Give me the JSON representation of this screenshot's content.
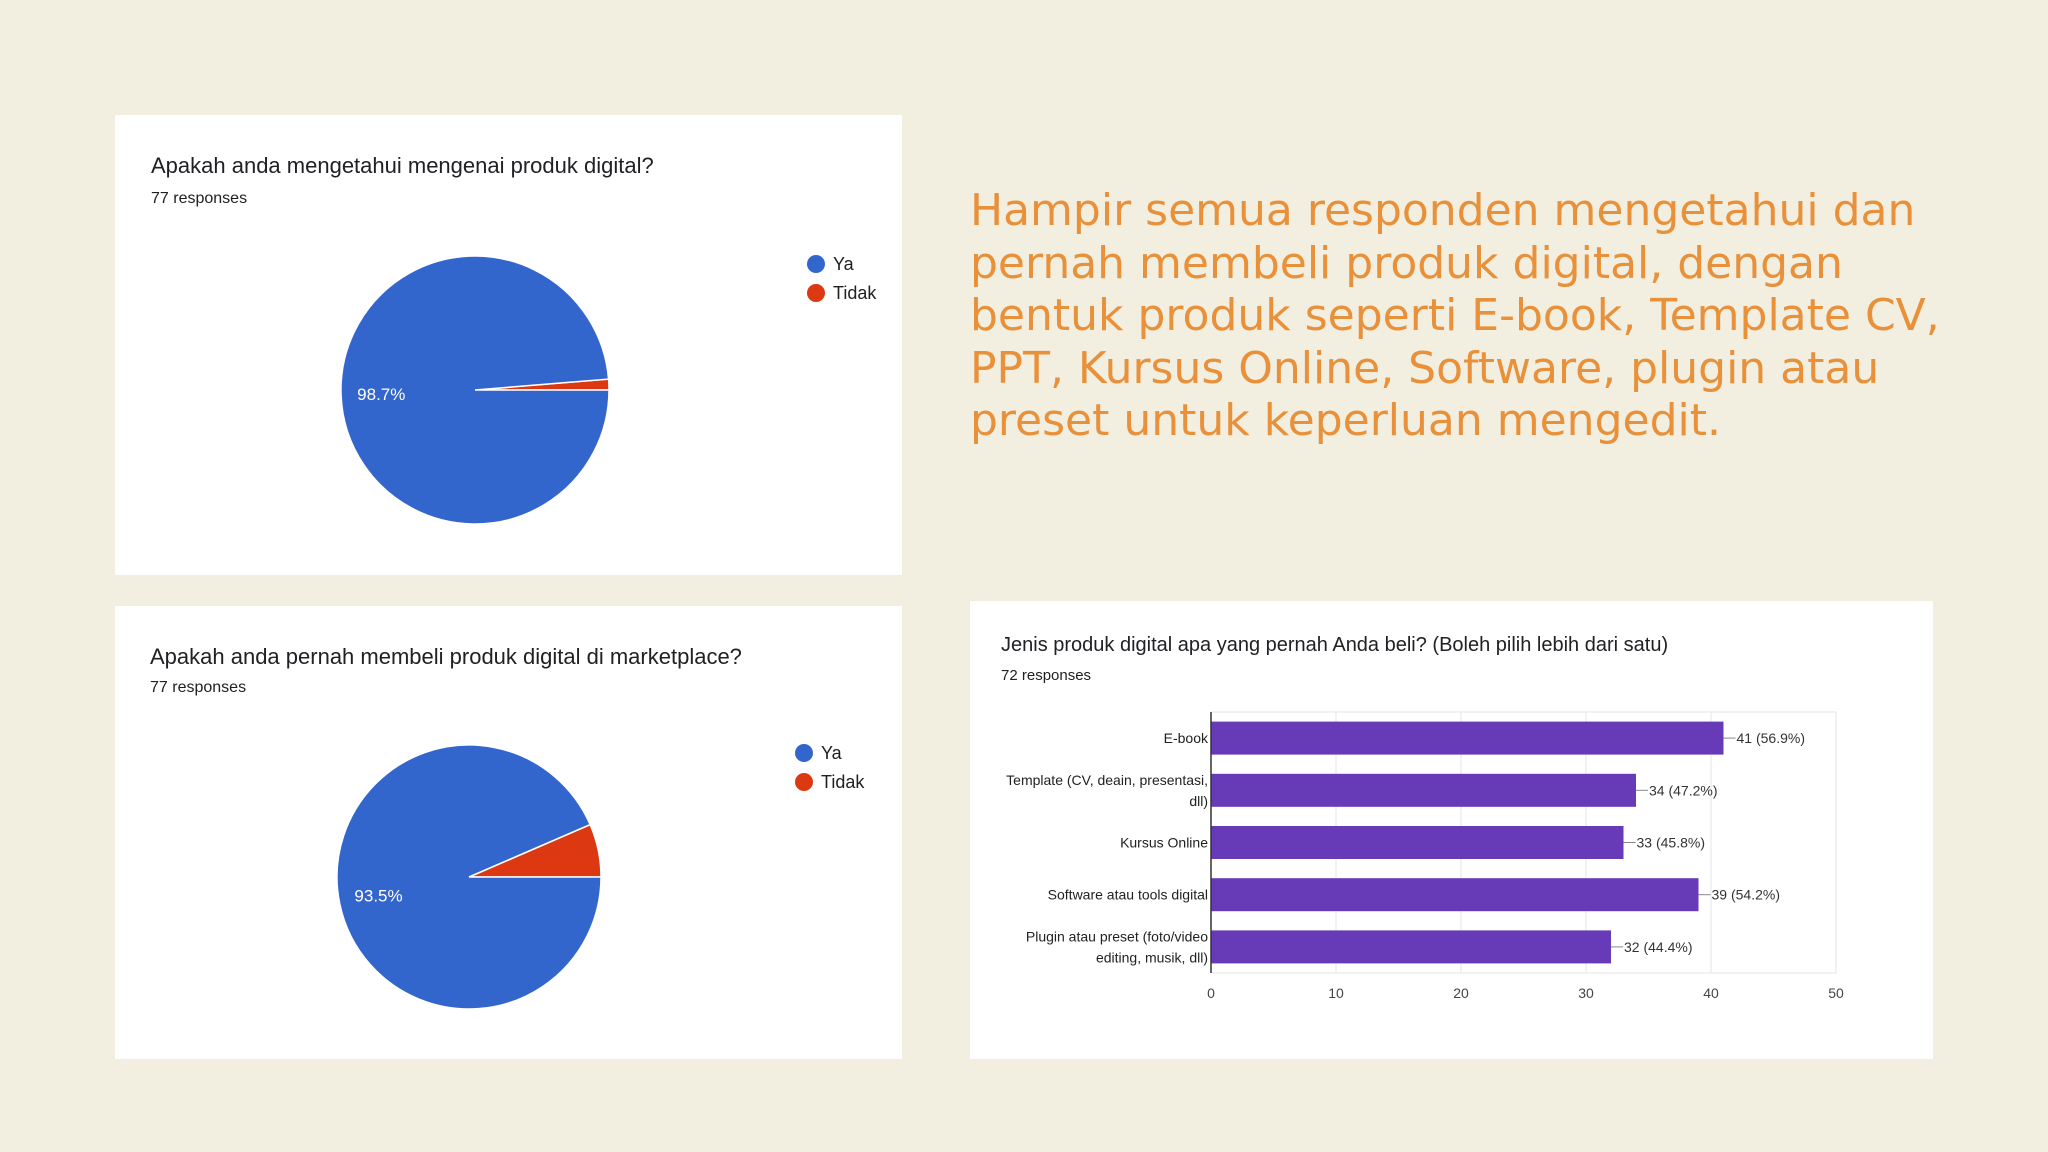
{
  "headline": "Hampir semua responden mengetahui dan pernah membeli produk digital, dengan bentuk produk seperti E-book, Template CV, PPT, Kursus Online, Software, plugin atau preset untuk keperluan mengedit.",
  "colors": {
    "background": "#f2efe1",
    "headline": "#e8913a",
    "ya": "#3366cc",
    "tidak": "#dc3912",
    "bar": "#673ab7"
  },
  "chart_data": [
    {
      "type": "pie",
      "title": "Apakah anda mengetahui mengenai produk digital?",
      "subtitle": "77 responses",
      "labels": [
        "Ya",
        "Tidak"
      ],
      "values": [
        98.7,
        1.3
      ],
      "data_labels": [
        "98.7%",
        ""
      ],
      "legend": "right",
      "colors": [
        "#3366cc",
        "#dc3912"
      ]
    },
    {
      "type": "pie",
      "title": "Apakah anda pernah membeli produk digital di marketplace?",
      "subtitle": "77 responses",
      "labels": [
        "Ya",
        "Tidak"
      ],
      "values": [
        93.5,
        6.5
      ],
      "data_labels": [
        "93.5%",
        ""
      ],
      "legend": "right",
      "colors": [
        "#3366cc",
        "#dc3912"
      ]
    },
    {
      "type": "bar",
      "orientation": "horizontal",
      "title": "Jenis produk digital apa yang pernah Anda beli? (Boleh pilih lebih dari satu)",
      "subtitle": "72 responses",
      "categories": [
        [
          "E-book"
        ],
        [
          "Template (CV, deain, presentasi,",
          "dll)"
        ],
        [
          "Kursus Online"
        ],
        [
          "Software atau tools digital"
        ],
        [
          "Plugin atau preset (foto/video",
          "editing, musik, dll)"
        ]
      ],
      "values": [
        41,
        34,
        33,
        39,
        32
      ],
      "data_labels": [
        "41 (56.9%)",
        "34 (47.2%)",
        "33 (45.8%)",
        "39 (54.2%)",
        "32 (44.4%)"
      ],
      "xlim": [
        0,
        50
      ],
      "xticks": [
        0,
        10,
        20,
        30,
        40,
        50
      ],
      "grid": true,
      "color": "#673ab7"
    }
  ]
}
